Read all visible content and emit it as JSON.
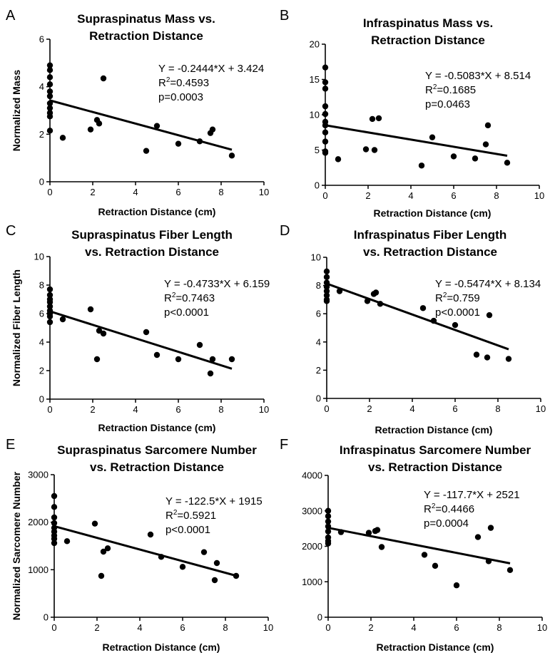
{
  "chart_data": [
    {
      "panel": "A",
      "type": "scatter",
      "title": [
        "Supraspinatus Mass vs.",
        "Retraction Distance"
      ],
      "xlabel": "Retraction Distance (cm)",
      "ylabel": "Normalized Mass",
      "xlim": [
        0,
        10
      ],
      "ylim": [
        0,
        6
      ],
      "xticks": [
        0,
        2,
        4,
        6,
        8,
        10
      ],
      "yticks": [
        0,
        2,
        4,
        6
      ],
      "equation": "Y = -0.2444*X + 3.424",
      "r2": "0.4593",
      "p": "p=0.0003",
      "fit": {
        "slope": -0.2444,
        "intercept": 3.424,
        "x": [
          0,
          8.5
        ]
      },
      "points": [
        [
          0,
          4.9
        ],
        [
          0,
          4.7
        ],
        [
          0,
          4.4
        ],
        [
          0,
          4.1
        ],
        [
          0,
          3.8
        ],
        [
          0,
          3.6
        ],
        [
          0,
          3.3
        ],
        [
          0,
          3.1
        ],
        [
          0,
          2.9
        ],
        [
          0,
          2.75
        ],
        [
          0,
          2.15
        ],
        [
          0.6,
          1.85
        ],
        [
          1.9,
          2.2
        ],
        [
          2.2,
          2.6
        ],
        [
          2.3,
          2.45
        ],
        [
          2.5,
          4.35
        ],
        [
          4.5,
          1.3
        ],
        [
          5.0,
          2.35
        ],
        [
          6.0,
          1.6
        ],
        [
          7.0,
          1.7
        ],
        [
          7.5,
          2.05
        ],
        [
          7.6,
          2.2
        ],
        [
          8.5,
          1.1
        ]
      ]
    },
    {
      "panel": "B",
      "type": "scatter",
      "title": [
        "Infraspinatus Mass vs.",
        "Retraction Distance"
      ],
      "xlabel": "Retraction Distance (cm)",
      "ylabel": "",
      "xlim": [
        0,
        10
      ],
      "ylim": [
        0,
        20
      ],
      "xticks": [
        0,
        2,
        4,
        6,
        8,
        10
      ],
      "yticks": [
        0,
        5,
        10,
        15,
        20
      ],
      "equation": "Y = -0.5083*X + 8.514",
      "r2": "0.1685",
      "p": "p=0.0463",
      "fit": {
        "slope": -0.5083,
        "intercept": 8.514,
        "x": [
          0,
          8.5
        ]
      },
      "points": [
        [
          0,
          16.7
        ],
        [
          0,
          14.6
        ],
        [
          0,
          13.7
        ],
        [
          0,
          11.2
        ],
        [
          0,
          10.1
        ],
        [
          0,
          9.0
        ],
        [
          0,
          8.5
        ],
        [
          0,
          7.5
        ],
        [
          0,
          6.2
        ],
        [
          0,
          4.8
        ],
        [
          0,
          4.6
        ],
        [
          0.6,
          3.7
        ],
        [
          1.9,
          5.1
        ],
        [
          2.2,
          9.4
        ],
        [
          2.3,
          5.0
        ],
        [
          2.5,
          9.5
        ],
        [
          4.5,
          2.8
        ],
        [
          5.0,
          6.8
        ],
        [
          6.0,
          4.1
        ],
        [
          7.0,
          3.8
        ],
        [
          7.5,
          5.8
        ],
        [
          7.6,
          8.5
        ],
        [
          8.5,
          3.2
        ]
      ]
    },
    {
      "panel": "C",
      "type": "scatter",
      "title": [
        "Supraspinatus Fiber Length",
        "vs. Retraction Distance"
      ],
      "xlabel": "Retraction Distance (cm)",
      "ylabel": "Normalized Fiber Length",
      "xlim": [
        0,
        10
      ],
      "ylim": [
        0,
        10
      ],
      "xticks": [
        0,
        2,
        4,
        6,
        8,
        10
      ],
      "yticks": [
        0,
        2,
        4,
        6,
        8,
        10
      ],
      "equation": "Y = -0.4733*X + 6.159",
      "r2": "0.7463",
      "p": "p<0.0001",
      "fit": {
        "slope": -0.4733,
        "intercept": 6.159,
        "x": [
          0,
          8.5
        ]
      },
      "points": [
        [
          0,
          7.7
        ],
        [
          0,
          7.3
        ],
        [
          0,
          7.0
        ],
        [
          0,
          6.8
        ],
        [
          0,
          6.5
        ],
        [
          0,
          6.2
        ],
        [
          0,
          6.0
        ],
        [
          0,
          5.8
        ],
        [
          0,
          5.4
        ],
        [
          0.6,
          5.6
        ],
        [
          1.9,
          6.3
        ],
        [
          2.2,
          2.8
        ],
        [
          2.3,
          4.8
        ],
        [
          2.5,
          4.6
        ],
        [
          4.5,
          4.7
        ],
        [
          5.0,
          3.1
        ],
        [
          6.0,
          2.8
        ],
        [
          7.0,
          3.8
        ],
        [
          7.5,
          1.8
        ],
        [
          7.6,
          2.8
        ],
        [
          8.5,
          2.8
        ]
      ]
    },
    {
      "panel": "D",
      "type": "scatter",
      "title": [
        "Infraspinatus Fiber Length",
        "vs. Retraction Distance"
      ],
      "xlabel": "Retraction Distance (cm)",
      "ylabel": "",
      "xlim": [
        0,
        10
      ],
      "ylim": [
        0,
        10
      ],
      "xticks": [
        0,
        2,
        4,
        6,
        8,
        10
      ],
      "yticks": [
        0,
        2,
        4,
        6,
        8,
        10
      ],
      "equation": "Y = -0.5474*X + 8.134",
      "r2": "0.759",
      "p": "p<0.0001",
      "fit": {
        "slope": -0.5474,
        "intercept": 8.134,
        "x": [
          0,
          8.5
        ]
      },
      "points": [
        [
          0,
          9.0
        ],
        [
          0,
          8.6
        ],
        [
          0,
          8.2
        ],
        [
          0,
          7.9
        ],
        [
          0,
          7.6
        ],
        [
          0,
          7.3
        ],
        [
          0,
          7.0
        ],
        [
          0,
          6.9
        ],
        [
          0.6,
          7.6
        ],
        [
          1.9,
          6.9
        ],
        [
          2.2,
          7.4
        ],
        [
          2.3,
          7.5
        ],
        [
          2.5,
          6.7
        ],
        [
          4.5,
          6.4
        ],
        [
          5.0,
          5.5
        ],
        [
          6.0,
          5.2
        ],
        [
          7.0,
          3.1
        ],
        [
          7.5,
          2.9
        ],
        [
          7.6,
          5.9
        ],
        [
          8.5,
          2.8
        ]
      ]
    },
    {
      "panel": "E",
      "type": "scatter",
      "title": [
        "Supraspinatus Sarcomere Number",
        "vs. Retraction Distance"
      ],
      "xlabel": "Retraction Distance (cm)",
      "ylabel": "Normalized Sarcomere Number",
      "xlim": [
        0,
        10
      ],
      "ylim": [
        0,
        3000
      ],
      "xticks": [
        0,
        2,
        4,
        6,
        8,
        10
      ],
      "yticks": [
        0,
        1000,
        2000,
        3000
      ],
      "equation": "Y = -122.5*X + 1915",
      "r2": "0.5921",
      "p": "p<0.0001",
      "fit": {
        "slope": -122.5,
        "intercept": 1915,
        "x": [
          0,
          8.5
        ]
      },
      "points": [
        [
          0,
          2550
        ],
        [
          0,
          2320
        ],
        [
          0,
          2100
        ],
        [
          0,
          1980
        ],
        [
          0,
          1880
        ],
        [
          0,
          1800
        ],
        [
          0,
          1720
        ],
        [
          0,
          1650
        ],
        [
          0,
          1560
        ],
        [
          0.6,
          1600
        ],
        [
          1.9,
          1970
        ],
        [
          2.2,
          870
        ],
        [
          2.3,
          1380
        ],
        [
          2.5,
          1450
        ],
        [
          4.5,
          1740
        ],
        [
          5.0,
          1270
        ],
        [
          6.0,
          1060
        ],
        [
          7.0,
          1370
        ],
        [
          7.5,
          780
        ],
        [
          7.6,
          1140
        ],
        [
          8.5,
          870
        ]
      ]
    },
    {
      "panel": "F",
      "type": "scatter",
      "title": [
        "Infraspinatus Sarcomere Number",
        "vs. Retraction Distance"
      ],
      "xlabel": "Retraction Distance (cm)",
      "ylabel": "",
      "xlim": [
        0,
        10
      ],
      "ylim": [
        0,
        4000
      ],
      "xticks": [
        0,
        2,
        4,
        6,
        8,
        10
      ],
      "yticks": [
        0,
        1000,
        2000,
        3000,
        4000
      ],
      "equation": "Y = -117.7*X + 2521",
      "r2": "0.4466",
      "p": "p=0.0004",
      "fit": {
        "slope": -117.7,
        "intercept": 2521,
        "x": [
          0,
          8.5
        ]
      },
      "points": [
        [
          0,
          3000
        ],
        [
          0,
          2850
        ],
        [
          0,
          2700
        ],
        [
          0,
          2560
        ],
        [
          0,
          2420
        ],
        [
          0,
          2250
        ],
        [
          0,
          2150
        ],
        [
          0,
          2080
        ],
        [
          0.6,
          2400
        ],
        [
          1.9,
          2380
        ],
        [
          2.2,
          2430
        ],
        [
          2.3,
          2460
        ],
        [
          2.5,
          1980
        ],
        [
          4.5,
          1760
        ],
        [
          5.0,
          1450
        ],
        [
          6.0,
          900
        ],
        [
          7.0,
          2260
        ],
        [
          7.5,
          1580
        ],
        [
          7.6,
          2520
        ],
        [
          8.5,
          1330
        ]
      ]
    }
  ]
}
